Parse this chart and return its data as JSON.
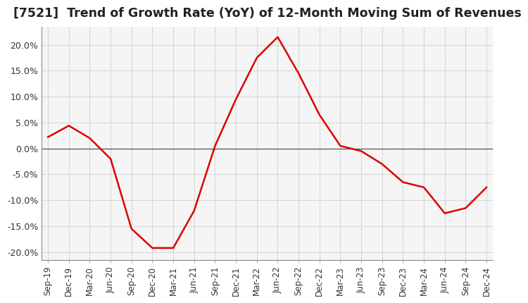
{
  "title": "[7521]  Trend of Growth Rate (YoY) of 12-Month Moving Sum of Revenues",
  "title_fontsize": 12.5,
  "line_color": "#dd0000",
  "background_color": "#ffffff",
  "plot_bg_color": "#f5f5f5",
  "grid_color": "#aaaaaa",
  "ylabel": "",
  "ylim": [
    -0.215,
    0.235
  ],
  "yticks": [
    -0.2,
    -0.15,
    -0.1,
    -0.05,
    0.0,
    0.05,
    0.1,
    0.15,
    0.2
  ],
  "x_labels": [
    "Sep-19",
    "Dec-19",
    "Mar-20",
    "Jun-20",
    "Sep-20",
    "Dec-20",
    "Mar-21",
    "Jun-21",
    "Sep-21",
    "Dec-21",
    "Mar-22",
    "Jun-22",
    "Sep-22",
    "Dec-22",
    "Mar-23",
    "Jun-23",
    "Sep-23",
    "Dec-23",
    "Mar-24",
    "Jun-24",
    "Sep-24",
    "Dec-24"
  ],
  "y_values": [
    0.022,
    0.044,
    0.02,
    -0.02,
    -0.155,
    -0.192,
    -0.192,
    -0.12,
    0.005,
    0.095,
    0.175,
    0.215,
    0.145,
    0.065,
    0.005,
    -0.005,
    -0.03,
    -0.065,
    -0.075,
    -0.125,
    -0.115,
    -0.075
  ]
}
